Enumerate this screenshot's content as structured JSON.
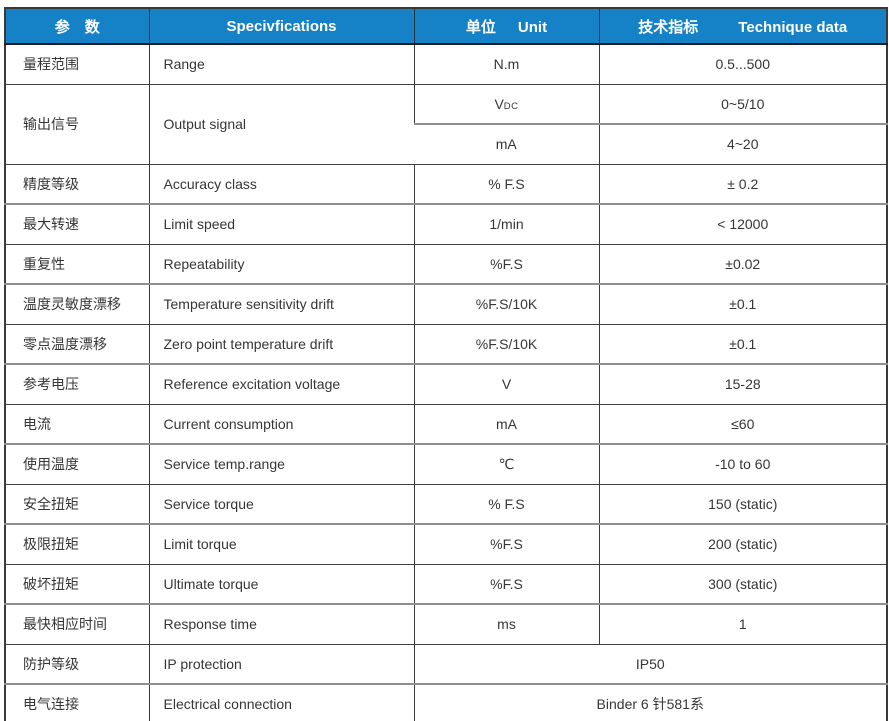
{
  "colors": {
    "header_bg": "#1581c6",
    "header_text": "#ffffff",
    "border_dark": "#3a3a3a",
    "border_gray": "#8f8f8f",
    "body_text": "#363636"
  },
  "header": {
    "param": "参　数",
    "spec": "Specivfications",
    "unit_zh": "单位",
    "unit_en": "Unit",
    "data_zh": "技术指标",
    "data_en": "Technique data"
  },
  "rows": [
    {
      "param": "量程范围",
      "spec": "Range",
      "unit": "N.m",
      "value": "0.5...500"
    },
    {
      "param": "输出信号",
      "spec": "Output signal",
      "sub": [
        {
          "unit_main": "V",
          "unit_sub": "DC",
          "value": "0~5/10"
        },
        {
          "unit": "mA",
          "value": "4~20"
        }
      ]
    },
    {
      "param": "精度等级",
      "spec": "Accuracy class",
      "unit": "% F.S",
      "value": "± 0.2"
    },
    {
      "param": "最大转速",
      "spec": "Limit speed",
      "unit": "1/min",
      "value": "< 12000"
    },
    {
      "param": "重复性",
      "spec": "Repeatability",
      "unit": "%F.S",
      "value": "±0.02"
    },
    {
      "param": "温度灵敏度漂移",
      "spec": "Temperature sensitivity drift",
      "unit": "%F.S/10K",
      "value": "±0.1"
    },
    {
      "param": "零点温度漂移",
      "spec": "Zero point temperature drift",
      "unit": "%F.S/10K",
      "value": "±0.1"
    },
    {
      "param": "参考电压",
      "spec": "Reference excitation voltage",
      "unit": "V",
      "value": "15-28"
    },
    {
      "param": "电流",
      "spec": "Current consumption",
      "unit": "mA",
      "value": "≤60"
    },
    {
      "param": "使用温度",
      "spec": "Service temp.range",
      "unit": "℃",
      "value": "-10 to 60"
    },
    {
      "param": "安全扭矩",
      "spec": "Service torque",
      "unit": "% F.S",
      "value": "150 (static)"
    },
    {
      "param": "极限扭矩",
      "spec": "Limit torque",
      "unit": "%F.S",
      "value": "200 (static)"
    },
    {
      "param": "破坏扭矩",
      "spec": "Ultimate torque",
      "unit": "%F.S",
      "value": "300 (static)"
    },
    {
      "param": "最快相应时间",
      "spec": "Response time",
      "unit": "ms",
      "value": "1"
    },
    {
      "param": "防护等级",
      "spec": "IP protection",
      "value": "IP50"
    },
    {
      "param": "电气连接",
      "spec": "Electrical connection",
      "value": "Binder 6 针581系"
    }
  ]
}
